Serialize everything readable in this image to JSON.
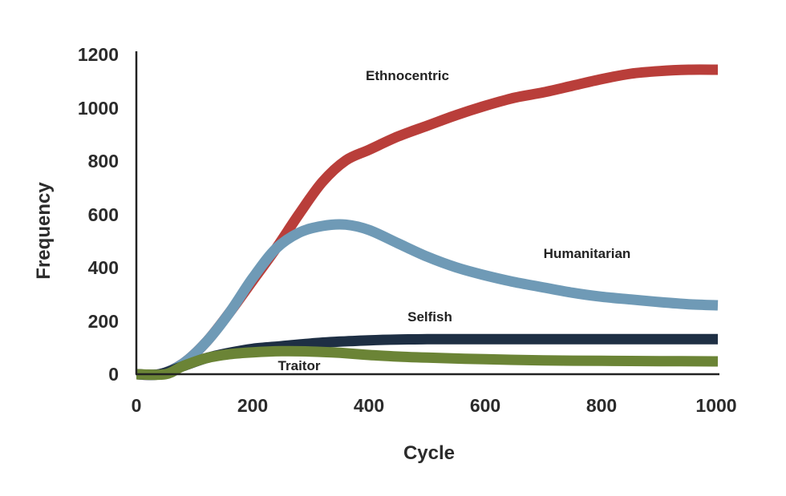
{
  "chart_data": {
    "type": "line",
    "title": "",
    "xlabel": "Cycle",
    "ylabel": "Frequency",
    "xlim": [
      0,
      1000
    ],
    "ylim": [
      0,
      1200
    ],
    "x_ticks": [
      "0",
      "200",
      "400",
      "600",
      "800",
      "1000"
    ],
    "y_ticks": [
      "0",
      "200",
      "400",
      "600",
      "800",
      "1000",
      "1200"
    ],
    "grid": false,
    "legend": "none",
    "series": [
      {
        "name": "Ethnocentric",
        "color": "#b93e3a",
        "x": [
          0,
          40,
          80,
          120,
          160,
          200,
          240,
          280,
          320,
          360,
          400,
          450,
          500,
          550,
          600,
          650,
          700,
          750,
          800,
          850,
          900,
          950,
          1000
        ],
        "y": [
          0,
          0,
          40,
          120,
          230,
          350,
          470,
          600,
          720,
          800,
          840,
          890,
          930,
          970,
          1005,
          1035,
          1055,
          1080,
          1105,
          1125,
          1135,
          1140,
          1140
        ]
      },
      {
        "name": "Humanitarian",
        "color": "#6f9ab6",
        "x": [
          0,
          40,
          80,
          120,
          160,
          200,
          240,
          280,
          320,
          360,
          400,
          450,
          500,
          550,
          600,
          650,
          700,
          750,
          800,
          850,
          900,
          950,
          1000
        ],
        "y": [
          0,
          0,
          40,
          120,
          230,
          360,
          470,
          530,
          555,
          560,
          540,
          490,
          440,
          400,
          370,
          345,
          325,
          305,
          290,
          280,
          270,
          262,
          258
        ]
      },
      {
        "name": "Selfish",
        "color": "#1e2f44",
        "x": [
          0,
          40,
          80,
          120,
          160,
          200,
          250,
          300,
          350,
          400,
          450,
          500,
          600,
          700,
          800,
          900,
          1000
        ],
        "y": [
          0,
          0,
          30,
          60,
          80,
          95,
          105,
          115,
          122,
          127,
          130,
          131,
          131,
          131,
          131,
          131,
          131
        ]
      },
      {
        "name": "Traitor",
        "color": "#6b8436",
        "x": [
          0,
          50,
          80,
          120,
          160,
          200,
          250,
          300,
          350,
          400,
          450,
          500,
          600,
          700,
          800,
          900,
          1000
        ],
        "y": [
          0,
          0,
          30,
          60,
          75,
          82,
          86,
          85,
          80,
          72,
          66,
          62,
          56,
          52,
          50,
          49,
          48
        ]
      }
    ]
  }
}
